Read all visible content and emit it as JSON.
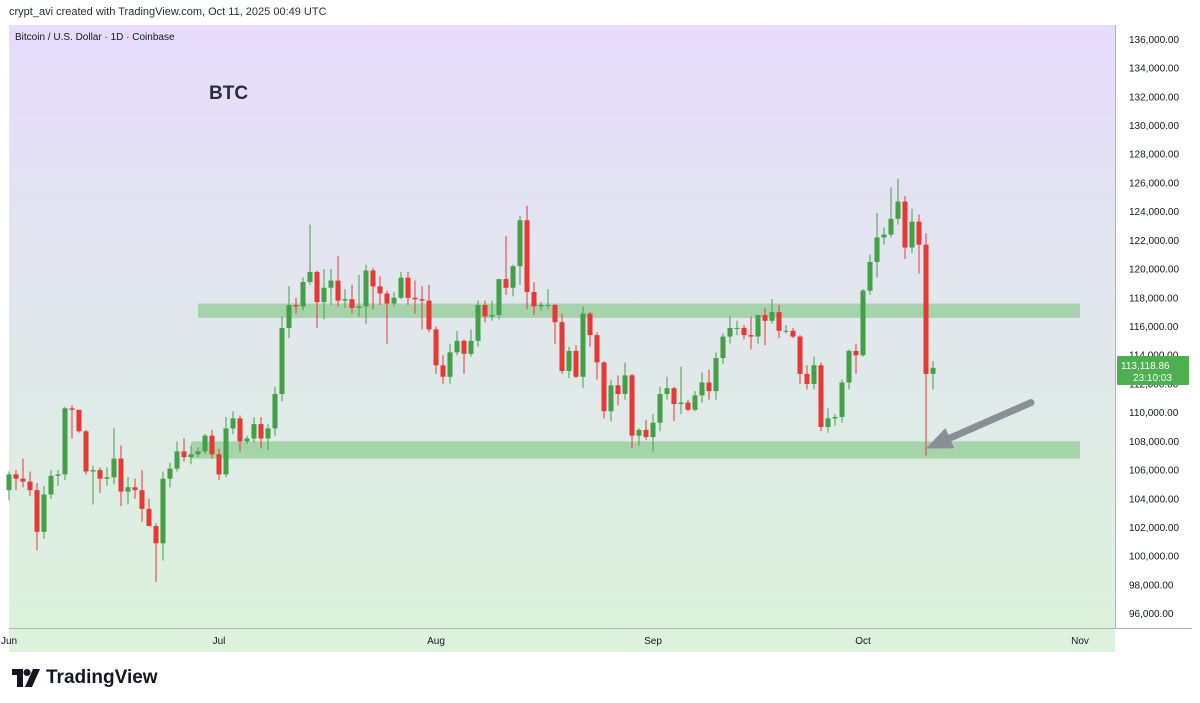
{
  "header": {
    "credit": "crypt_avi created with TradingView.com, Oct 11, 2025 00:49 UTC"
  },
  "chart_data": {
    "type": "candlestick",
    "symbol_line": "Bitcoin / U.S. Dollar · 1D · Coinbase",
    "title": "BTC",
    "y_axis": {
      "ticks": [
        96000,
        98000,
        100000,
        102000,
        104000,
        106000,
        108000,
        110000,
        112000,
        114000,
        116000,
        118000,
        120000,
        122000,
        124000,
        126000,
        128000,
        130000,
        132000,
        134000,
        136000
      ],
      "tick_labels": [
        "96,000.00",
        "98,000.00",
        "100,000.00",
        "102,000.00",
        "104,000.00",
        "106,000.00",
        "108,000.00",
        "110,000.00",
        "112,000.00",
        "114,000.00",
        "116,000.00",
        "118,000.00",
        "120,000.00",
        "122,000.00",
        "124,000.00",
        "126,000.00",
        "128,000.00",
        "130,000.00",
        "132,000.00",
        "134,000.00",
        "136,000.00"
      ],
      "range": [
        95000,
        137000
      ]
    },
    "x_axis": {
      "start_date": "2025-06-01",
      "end_date": "2025-11-06",
      "labels": [
        {
          "date": "2025-06-01",
          "text": "Jun"
        },
        {
          "date": "2025-07-01",
          "text": "Jul"
        },
        {
          "date": "2025-08-01",
          "text": "Aug"
        },
        {
          "date": "2025-09-01",
          "text": "Sep"
        },
        {
          "date": "2025-10-01",
          "text": "Oct"
        },
        {
          "date": "2025-11-01",
          "text": "Nov"
        }
      ]
    },
    "last_price": {
      "value": 113118.86,
      "label": "113,118.86",
      "countdown": "23:10:03",
      "color": "#4caf50"
    },
    "zones": [
      {
        "name": "resistance-zone",
        "y_low": 116600,
        "y_high": 117600,
        "from": "2025-06-28",
        "to": "2025-11-01"
      },
      {
        "name": "support-zone",
        "y_low": 106800,
        "y_high": 108000,
        "from": "2025-06-27",
        "to": "2025-11-01"
      }
    ],
    "arrow": {
      "from_date": "2025-10-25",
      "from_price": 110700,
      "to_date": "2025-10-10",
      "to_price": 107500
    },
    "colors": {
      "up": "#26a69a",
      "up_fill": "#43a047",
      "down": "#e53935",
      "zone": "#81c784",
      "arrow": "#8a8f96",
      "bg_top": "#e6dcfb",
      "bg_bottom": "#dcf2dc"
    },
    "candles": [
      {
        "d": "2025-06-01",
        "o": 104600,
        "h": 105900,
        "l": 103900,
        "c": 105700
      },
      {
        "d": "2025-06-02",
        "o": 105700,
        "h": 106000,
        "l": 104600,
        "c": 105400
      },
      {
        "d": "2025-06-03",
        "o": 105400,
        "h": 106800,
        "l": 104800,
        "c": 105200
      },
      {
        "d": "2025-06-04",
        "o": 105200,
        "h": 105900,
        "l": 104200,
        "c": 104600
      },
      {
        "d": "2025-06-05",
        "o": 104600,
        "h": 105100,
        "l": 100400,
        "c": 101700
      },
      {
        "d": "2025-06-06",
        "o": 101700,
        "h": 104900,
        "l": 101200,
        "c": 104300
      },
      {
        "d": "2025-06-07",
        "o": 104300,
        "h": 106000,
        "l": 104000,
        "c": 105600
      },
      {
        "d": "2025-06-08",
        "o": 105600,
        "h": 106000,
        "l": 104900,
        "c": 105700
      },
      {
        "d": "2025-06-09",
        "o": 105700,
        "h": 110400,
        "l": 105300,
        "c": 110300
      },
      {
        "d": "2025-06-10",
        "o": 110300,
        "h": 110500,
        "l": 108200,
        "c": 110200
      },
      {
        "d": "2025-06-11",
        "o": 110200,
        "h": 110200,
        "l": 108600,
        "c": 108700
      },
      {
        "d": "2025-06-12",
        "o": 108700,
        "h": 108800,
        "l": 105700,
        "c": 105900
      },
      {
        "d": "2025-06-13",
        "o": 105900,
        "h": 106300,
        "l": 103600,
        "c": 106000
      },
      {
        "d": "2025-06-14",
        "o": 106000,
        "h": 106200,
        "l": 104400,
        "c": 105400
      },
      {
        "d": "2025-06-15",
        "o": 105400,
        "h": 106200,
        "l": 104900,
        "c": 105500
      },
      {
        "d": "2025-06-16",
        "o": 105500,
        "h": 108900,
        "l": 105000,
        "c": 106800
      },
      {
        "d": "2025-06-17",
        "o": 106800,
        "h": 107700,
        "l": 103500,
        "c": 104500
      },
      {
        "d": "2025-06-18",
        "o": 104500,
        "h": 105500,
        "l": 103600,
        "c": 104800
      },
      {
        "d": "2025-06-19",
        "o": 104800,
        "h": 105400,
        "l": 104000,
        "c": 104600
      },
      {
        "d": "2025-06-20",
        "o": 104600,
        "h": 106000,
        "l": 102400,
        "c": 103300
      },
      {
        "d": "2025-06-21",
        "o": 103300,
        "h": 104000,
        "l": 102100,
        "c": 102100
      },
      {
        "d": "2025-06-22",
        "o": 102100,
        "h": 102300,
        "l": 98200,
        "c": 100900
      },
      {
        "d": "2025-06-23",
        "o": 100900,
        "h": 105900,
        "l": 99700,
        "c": 105400
      },
      {
        "d": "2025-06-24",
        "o": 105400,
        "h": 106500,
        "l": 104800,
        "c": 106100
      },
      {
        "d": "2025-06-25",
        "o": 106100,
        "h": 108000,
        "l": 105900,
        "c": 107300
      },
      {
        "d": "2025-06-26",
        "o": 107300,
        "h": 108200,
        "l": 106600,
        "c": 106900
      },
      {
        "d": "2025-06-27",
        "o": 106900,
        "h": 107700,
        "l": 106400,
        "c": 107100
      },
      {
        "d": "2025-06-28",
        "o": 107100,
        "h": 107600,
        "l": 106900,
        "c": 107300
      },
      {
        "d": "2025-06-29",
        "o": 107300,
        "h": 108500,
        "l": 107100,
        "c": 108400
      },
      {
        "d": "2025-06-30",
        "o": 108400,
        "h": 108800,
        "l": 106800,
        "c": 107100
      },
      {
        "d": "2025-07-01",
        "o": 107100,
        "h": 107500,
        "l": 105300,
        "c": 105700
      },
      {
        "d": "2025-07-02",
        "o": 105700,
        "h": 109700,
        "l": 105500,
        "c": 108900
      },
      {
        "d": "2025-07-03",
        "o": 108900,
        "h": 110100,
        "l": 108500,
        "c": 109600
      },
      {
        "d": "2025-07-04",
        "o": 109600,
        "h": 109800,
        "l": 107300,
        "c": 108000
      },
      {
        "d": "2025-07-05",
        "o": 108000,
        "h": 108400,
        "l": 107800,
        "c": 108200
      },
      {
        "d": "2025-07-06",
        "o": 108200,
        "h": 109700,
        "l": 107900,
        "c": 109200
      },
      {
        "d": "2025-07-07",
        "o": 109200,
        "h": 109700,
        "l": 107500,
        "c": 108200
      },
      {
        "d": "2025-07-08",
        "o": 108200,
        "h": 109200,
        "l": 107400,
        "c": 108900
      },
      {
        "d": "2025-07-09",
        "o": 108900,
        "h": 111800,
        "l": 108400,
        "c": 111300
      },
      {
        "d": "2025-07-10",
        "o": 111300,
        "h": 116700,
        "l": 110800,
        "c": 115900
      },
      {
        "d": "2025-07-11",
        "o": 115900,
        "h": 118800,
        "l": 115200,
        "c": 117500
      },
      {
        "d": "2025-07-12",
        "o": 117500,
        "h": 118000,
        "l": 116900,
        "c": 117400
      },
      {
        "d": "2025-07-13",
        "o": 117400,
        "h": 119400,
        "l": 117100,
        "c": 119100
      },
      {
        "d": "2025-07-14",
        "o": 119100,
        "h": 123100,
        "l": 118900,
        "c": 119800
      },
      {
        "d": "2025-07-15",
        "o": 119800,
        "h": 119900,
        "l": 115900,
        "c": 117700
      },
      {
        "d": "2025-07-16",
        "o": 117700,
        "h": 120000,
        "l": 116500,
        "c": 118700
      },
      {
        "d": "2025-07-17",
        "o": 118700,
        "h": 120000,
        "l": 117500,
        "c": 119200
      },
      {
        "d": "2025-07-18",
        "o": 119200,
        "h": 120900,
        "l": 117400,
        "c": 117800
      },
      {
        "d": "2025-07-19",
        "o": 117800,
        "h": 118600,
        "l": 117300,
        "c": 117900
      },
      {
        "d": "2025-07-20",
        "o": 117900,
        "h": 118900,
        "l": 116900,
        "c": 117300
      },
      {
        "d": "2025-07-21",
        "o": 117300,
        "h": 119600,
        "l": 116700,
        "c": 117400
      },
      {
        "d": "2025-07-22",
        "o": 117400,
        "h": 120300,
        "l": 116200,
        "c": 119900
      },
      {
        "d": "2025-07-23",
        "o": 119900,
        "h": 120100,
        "l": 117200,
        "c": 118800
      },
      {
        "d": "2025-07-24",
        "o": 118800,
        "h": 119500,
        "l": 117500,
        "c": 118300
      },
      {
        "d": "2025-07-25",
        "o": 118300,
        "h": 118500,
        "l": 114800,
        "c": 117600
      },
      {
        "d": "2025-07-26",
        "o": 117600,
        "h": 118400,
        "l": 117400,
        "c": 118000
      },
      {
        "d": "2025-07-27",
        "o": 118000,
        "h": 119800,
        "l": 117900,
        "c": 119400
      },
      {
        "d": "2025-07-28",
        "o": 119400,
        "h": 119800,
        "l": 117500,
        "c": 118000
      },
      {
        "d": "2025-07-29",
        "o": 118000,
        "h": 119200,
        "l": 116900,
        "c": 117900
      },
      {
        "d": "2025-07-30",
        "o": 117900,
        "h": 118800,
        "l": 115800,
        "c": 117800
      },
      {
        "d": "2025-07-31",
        "o": 117800,
        "h": 118900,
        "l": 115600,
        "c": 115800
      },
      {
        "d": "2025-08-01",
        "o": 115800,
        "h": 116000,
        "l": 112700,
        "c": 113300
      },
      {
        "d": "2025-08-02",
        "o": 113300,
        "h": 114000,
        "l": 112000,
        "c": 112500
      },
      {
        "d": "2025-08-03",
        "o": 112500,
        "h": 114800,
        "l": 112000,
        "c": 114200
      },
      {
        "d": "2025-08-04",
        "o": 114200,
        "h": 115700,
        "l": 114000,
        "c": 115000
      },
      {
        "d": "2025-08-05",
        "o": 115000,
        "h": 115100,
        "l": 112700,
        "c": 114100
      },
      {
        "d": "2025-08-06",
        "o": 114100,
        "h": 115800,
        "l": 113900,
        "c": 115000
      },
      {
        "d": "2025-08-07",
        "o": 115000,
        "h": 117800,
        "l": 114600,
        "c": 117500
      },
      {
        "d": "2025-08-08",
        "o": 117500,
        "h": 117800,
        "l": 116300,
        "c": 116700
      },
      {
        "d": "2025-08-09",
        "o": 116700,
        "h": 117800,
        "l": 116400,
        "c": 116800
      },
      {
        "d": "2025-08-10",
        "o": 116800,
        "h": 119300,
        "l": 116500,
        "c": 119300
      },
      {
        "d": "2025-08-11",
        "o": 119300,
        "h": 122300,
        "l": 118200,
        "c": 118700
      },
      {
        "d": "2025-08-12",
        "o": 118700,
        "h": 120300,
        "l": 118100,
        "c": 120200
      },
      {
        "d": "2025-08-13",
        "o": 120200,
        "h": 123700,
        "l": 118900,
        "c": 123400
      },
      {
        "d": "2025-08-14",
        "o": 123400,
        "h": 124400,
        "l": 117200,
        "c": 118400
      },
      {
        "d": "2025-08-15",
        "o": 118400,
        "h": 119100,
        "l": 116800,
        "c": 117400
      },
      {
        "d": "2025-08-16",
        "o": 117400,
        "h": 117700,
        "l": 117100,
        "c": 117500
      },
      {
        "d": "2025-08-17",
        "o": 117500,
        "h": 118600,
        "l": 117200,
        "c": 117500
      },
      {
        "d": "2025-08-18",
        "o": 117500,
        "h": 117600,
        "l": 114800,
        "c": 116300
      },
      {
        "d": "2025-08-19",
        "o": 116300,
        "h": 116900,
        "l": 112700,
        "c": 112900
      },
      {
        "d": "2025-08-20",
        "o": 112900,
        "h": 114600,
        "l": 112400,
        "c": 114300
      },
      {
        "d": "2025-08-21",
        "o": 114300,
        "h": 114700,
        "l": 112400,
        "c": 112500
      },
      {
        "d": "2025-08-22",
        "o": 112500,
        "h": 117400,
        "l": 111700,
        "c": 116900
      },
      {
        "d": "2025-08-23",
        "o": 116900,
        "h": 117000,
        "l": 114600,
        "c": 115400
      },
      {
        "d": "2025-08-24",
        "o": 115400,
        "h": 115600,
        "l": 112300,
        "c": 113500
      },
      {
        "d": "2025-08-25",
        "o": 113500,
        "h": 113600,
        "l": 109600,
        "c": 110100
      },
      {
        "d": "2025-08-26",
        "o": 110100,
        "h": 112300,
        "l": 109400,
        "c": 111900
      },
      {
        "d": "2025-08-27",
        "o": 111900,
        "h": 112600,
        "l": 110500,
        "c": 111300
      },
      {
        "d": "2025-08-28",
        "o": 111300,
        "h": 113500,
        "l": 110900,
        "c": 112600
      },
      {
        "d": "2025-08-29",
        "o": 112600,
        "h": 112700,
        "l": 107500,
        "c": 108400
      },
      {
        "d": "2025-08-30",
        "o": 108400,
        "h": 108900,
        "l": 107700,
        "c": 108800
      },
      {
        "d": "2025-08-31",
        "o": 108800,
        "h": 109500,
        "l": 108100,
        "c": 108300
      },
      {
        "d": "2025-09-01",
        "o": 108300,
        "h": 109900,
        "l": 107300,
        "c": 109300
      },
      {
        "d": "2025-09-02",
        "o": 109300,
        "h": 111800,
        "l": 108700,
        "c": 111300
      },
      {
        "d": "2025-09-03",
        "o": 111300,
        "h": 112500,
        "l": 110900,
        "c": 111700
      },
      {
        "d": "2025-09-04",
        "o": 111700,
        "h": 111800,
        "l": 109400,
        "c": 110600
      },
      {
        "d": "2025-09-05",
        "o": 110600,
        "h": 113200,
        "l": 109900,
        "c": 110700
      },
      {
        "d": "2025-09-06",
        "o": 110700,
        "h": 110900,
        "l": 110100,
        "c": 110200
      },
      {
        "d": "2025-09-07",
        "o": 110200,
        "h": 111500,
        "l": 110100,
        "c": 111200
      },
      {
        "d": "2025-09-08",
        "o": 111200,
        "h": 112800,
        "l": 110700,
        "c": 112100
      },
      {
        "d": "2025-09-09",
        "o": 112100,
        "h": 113000,
        "l": 110900,
        "c": 111500
      },
      {
        "d": "2025-09-10",
        "o": 111500,
        "h": 114200,
        "l": 110900,
        "c": 113800
      },
      {
        "d": "2025-09-11",
        "o": 113800,
        "h": 115500,
        "l": 113400,
        "c": 115300
      },
      {
        "d": "2025-09-12",
        "o": 115300,
        "h": 116700,
        "l": 114800,
        "c": 115900
      },
      {
        "d": "2025-09-13",
        "o": 115900,
        "h": 116400,
        "l": 115400,
        "c": 115900
      },
      {
        "d": "2025-09-14",
        "o": 115900,
        "h": 116100,
        "l": 115100,
        "c": 115400
      },
      {
        "d": "2025-09-15",
        "o": 115400,
        "h": 116700,
        "l": 114400,
        "c": 115300
      },
      {
        "d": "2025-09-16",
        "o": 115300,
        "h": 116800,
        "l": 114800,
        "c": 116800
      },
      {
        "d": "2025-09-17",
        "o": 116800,
        "h": 117300,
        "l": 114700,
        "c": 116400
      },
      {
        "d": "2025-09-18",
        "o": 116400,
        "h": 117900,
        "l": 116200,
        "c": 117000
      },
      {
        "d": "2025-09-19",
        "o": 117000,
        "h": 117500,
        "l": 115200,
        "c": 115700
      },
      {
        "d": "2025-09-20",
        "o": 115700,
        "h": 116100,
        "l": 115500,
        "c": 115700
      },
      {
        "d": "2025-09-21",
        "o": 115700,
        "h": 115900,
        "l": 115200,
        "c": 115300
      },
      {
        "d": "2025-09-22",
        "o": 115300,
        "h": 115400,
        "l": 112000,
        "c": 112700
      },
      {
        "d": "2025-09-23",
        "o": 112700,
        "h": 113300,
        "l": 111600,
        "c": 112000
      },
      {
        "d": "2025-09-24",
        "o": 112000,
        "h": 113900,
        "l": 111600,
        "c": 113300
      },
      {
        "d": "2025-09-25",
        "o": 113300,
        "h": 113500,
        "l": 108700,
        "c": 109000
      },
      {
        "d": "2025-09-26",
        "o": 109000,
        "h": 110300,
        "l": 108600,
        "c": 109600
      },
      {
        "d": "2025-09-27",
        "o": 109600,
        "h": 109900,
        "l": 109100,
        "c": 109700
      },
      {
        "d": "2025-09-28",
        "o": 109700,
        "h": 112300,
        "l": 109300,
        "c": 112100
      },
      {
        "d": "2025-09-29",
        "o": 112100,
        "h": 114400,
        "l": 111600,
        "c": 114300
      },
      {
        "d": "2025-09-30",
        "o": 114300,
        "h": 114800,
        "l": 112700,
        "c": 114000
      },
      {
        "d": "2025-10-01",
        "o": 114000,
        "h": 118600,
        "l": 113900,
        "c": 118500
      },
      {
        "d": "2025-10-02",
        "o": 118500,
        "h": 121000,
        "l": 118200,
        "c": 120500
      },
      {
        "d": "2025-10-03",
        "o": 120500,
        "h": 123900,
        "l": 119400,
        "c": 122200
      },
      {
        "d": "2025-10-04",
        "o": 122200,
        "h": 122900,
        "l": 121700,
        "c": 122400
      },
      {
        "d": "2025-10-05",
        "o": 122400,
        "h": 125700,
        "l": 122200,
        "c": 123500
      },
      {
        "d": "2025-10-06",
        "o": 123500,
        "h": 126300,
        "l": 123100,
        "c": 124700
      },
      {
        "d": "2025-10-07",
        "o": 124700,
        "h": 125100,
        "l": 120700,
        "c": 121500
      },
      {
        "d": "2025-10-08",
        "o": 121500,
        "h": 124200,
        "l": 121100,
        "c": 123300
      },
      {
        "d": "2025-10-09",
        "o": 123300,
        "h": 123800,
        "l": 119700,
        "c": 121700
      },
      {
        "d": "2025-10-10",
        "o": 121700,
        "h": 122500,
        "l": 107000,
        "c": 112700
      },
      {
        "d": "2025-10-11",
        "o": 112700,
        "h": 113600,
        "l": 111600,
        "c": 113118.86
      }
    ]
  }
}
